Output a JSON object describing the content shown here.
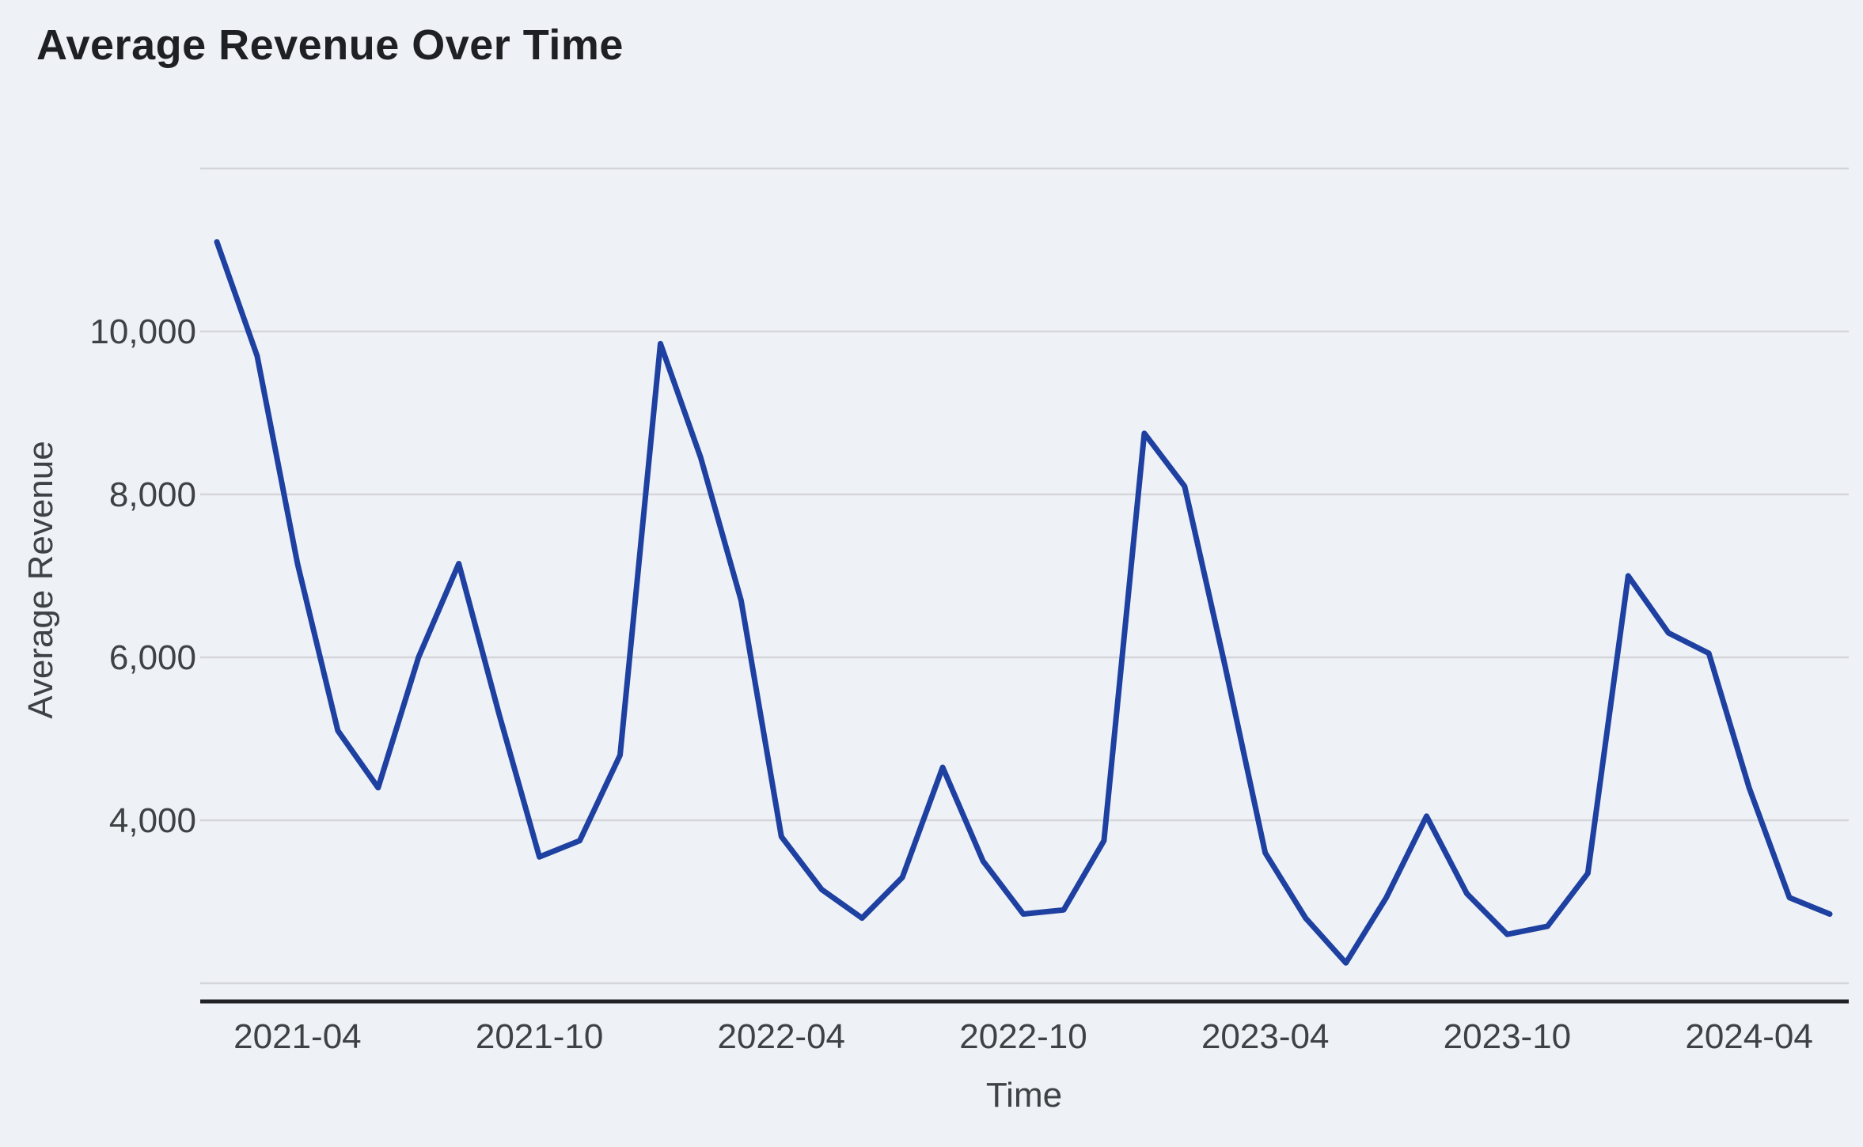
{
  "page": {
    "title": "Average Revenue Over Time"
  },
  "colors": {
    "background": "#eef1f6",
    "line": "#1e40a1",
    "gridline": "#d3d5d9",
    "axis_line": "#212225",
    "title_text": "#1f2023",
    "tick_text": "#3f4245"
  },
  "chart_data": {
    "type": "line",
    "title": "Average Revenue Over Time",
    "xlabel": "Time",
    "ylabel": "Average Revenue",
    "series_name": "Average Revenue",
    "x": [
      "2021-02",
      "2021-03",
      "2021-04",
      "2021-05",
      "2021-06",
      "2021-07",
      "2021-08",
      "2021-09",
      "2021-10",
      "2021-11",
      "2021-12",
      "2022-01",
      "2022-02",
      "2022-03",
      "2022-04",
      "2022-05",
      "2022-06",
      "2022-07",
      "2022-08",
      "2022-09",
      "2022-10",
      "2022-11",
      "2022-12",
      "2023-01",
      "2023-02",
      "2023-03",
      "2023-04",
      "2023-05",
      "2023-06",
      "2023-07",
      "2023-08",
      "2023-09",
      "2023-10",
      "2023-11",
      "2023-12",
      "2024-01",
      "2024-02",
      "2024-03",
      "2024-04",
      "2024-05",
      "2024-06"
    ],
    "values": [
      11100,
      9700,
      7150,
      5100,
      4400,
      6000,
      7150,
      5300,
      3550,
      3750,
      4800,
      9850,
      8450,
      6700,
      3800,
      3150,
      2800,
      3300,
      4650,
      3500,
      2850,
      2900,
      3750,
      8750,
      8100,
      5900,
      3600,
      2800,
      2250,
      3050,
      4050,
      3100,
      2600,
      2700,
      3350,
      7000,
      6300,
      6050,
      4400,
      3050,
      2850
    ],
    "x_tick_labels": [
      "2021-04",
      "2021-10",
      "2022-04",
      "2022-10",
      "2023-04",
      "2023-10",
      "2024-04"
    ],
    "y_ticks": [
      4000,
      6000,
      8000,
      10000
    ],
    "y_tick_labels": [
      "4,000",
      "6,000",
      "8,000",
      "10,000"
    ],
    "grid_values": [
      2000,
      4000,
      6000,
      8000,
      10000,
      12000
    ],
    "ylim": [
      2000,
      12000
    ],
    "grid": "horizontal",
    "legend_position": "none"
  }
}
